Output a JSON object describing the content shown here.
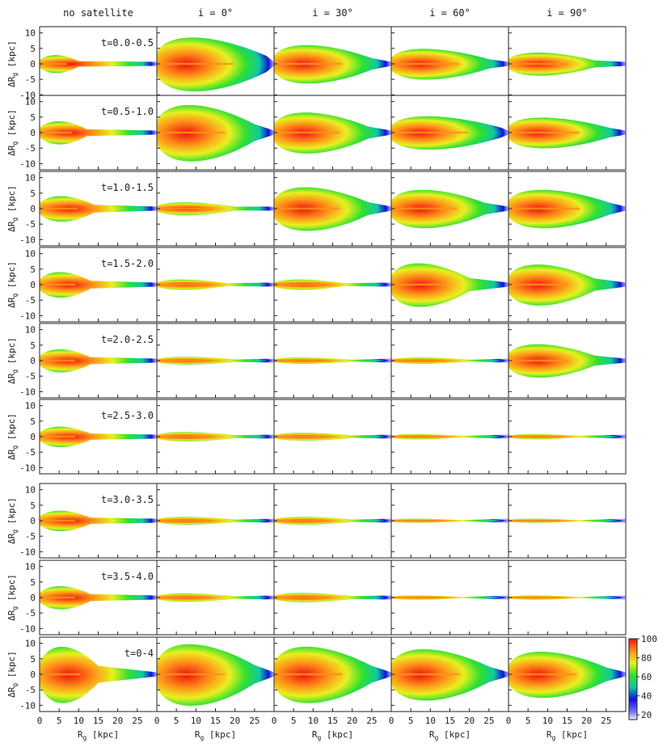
{
  "chart_data": {
    "type": "heatmap",
    "columns": [
      "no satellite",
      "i = 0°",
      "i = 30°",
      "i = 60°",
      "i = 90°"
    ],
    "rows": [
      "t=0.0-0.5",
      "t=0.5-1.0",
      "t=1.0-1.5",
      "t=1.5-2.0",
      "t=2.0-2.5",
      "t=2.5-3.0",
      "t=3.0-3.5",
      "t=3.5-4.0",
      "t=0-4"
    ],
    "xlabel_base": "R",
    "xlabel_sub": "g",
    "xlabel_unit": " [kpc]",
    "ylabel_prefix": "ΔR",
    "ylabel_sub": "g",
    "ylabel_unit": " [kpc]",
    "xlim": [
      0,
      30
    ],
    "ylim": [
      -12,
      12
    ],
    "xticks": [
      0,
      5,
      10,
      15,
      20,
      25
    ],
    "yticks": [
      10,
      5,
      0,
      -5,
      -10
    ],
    "colorbar": {
      "range": [
        15,
        100
      ],
      "ticks": [
        100,
        80,
        60,
        40,
        20
      ]
    },
    "colormap": [
      "#f0f0ff",
      "#1010e0",
      "#10c8a0",
      "#30e030",
      "#e8f020",
      "#ff9018",
      "#ee1010"
    ],
    "spread_kpc": [
      [
        3.5,
        10.5,
        7.5,
        6.0,
        4.5
      ],
      [
        4.5,
        11.0,
        8.0,
        6.5,
        6.0
      ],
      [
        5.0,
        2.5,
        8.5,
        7.5,
        7.5
      ],
      [
        5.0,
        2.0,
        2.0,
        8.5,
        8.0
      ],
      [
        4.5,
        1.5,
        1.2,
        1.2,
        6.5
      ],
      [
        4.0,
        1.8,
        1.5,
        1.0,
        1.0
      ],
      [
        4.0,
        1.5,
        1.5,
        0.8,
        0.8
      ],
      [
        4.5,
        1.6,
        1.8,
        0.8,
        0.8
      ],
      [
        11.0,
        12.0,
        11.0,
        10.0,
        9.0
      ]
    ],
    "extent_kpc": [
      [
        10,
        28,
        25,
        25,
        22
      ],
      [
        12,
        25,
        24,
        28,
        26
      ],
      [
        14,
        20,
        24,
        24,
        26
      ],
      [
        13,
        18,
        18,
        20,
        22
      ],
      [
        13,
        20,
        20,
        20,
        22
      ],
      [
        13,
        20,
        20,
        18,
        18
      ],
      [
        13,
        20,
        20,
        18,
        18
      ],
      [
        13,
        20,
        20,
        18,
        18
      ],
      [
        15,
        25,
        25,
        25,
        25
      ]
    ]
  }
}
